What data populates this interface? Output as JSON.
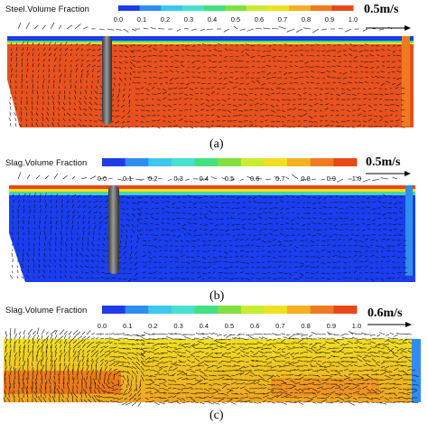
{
  "chart_data": [
    {
      "type": "heatmap",
      "caption": "(a)",
      "colorbar_label": "Steel.Volume Fraction",
      "tick_labels": [
        "0.0",
        "0.1",
        "0.2",
        "0.3",
        "0.4",
        "0.5",
        "0.6",
        "0.7",
        "0.8",
        "0.9",
        "1.0"
      ],
      "scale_vector_label": "0.5m/s",
      "dominant_value": 1.0
    },
    {
      "type": "heatmap",
      "caption": "(b)",
      "colorbar_label": "Slag.Volume Fraction",
      "tick_labels": [
        "0.0",
        "0.1",
        "0.2",
        "0.3",
        "0.4",
        "0.5",
        "0.6",
        "0.7",
        "0.8",
        "0.9",
        "1.0"
      ],
      "scale_vector_label": "0.5m/s",
      "dominant_value": 0.0
    },
    {
      "type": "heatmap",
      "caption": "(c)",
      "colorbar_label": "Slag.Volume Fraction",
      "tick_labels": [
        "0.0",
        "0.1",
        "0.2",
        "0.3",
        "0.4",
        "0.5",
        "0.6",
        "0.7",
        "0.8",
        "0.9",
        "1.0"
      ],
      "scale_vector_label": "0.6m/s",
      "dominant_value": 0.8
    }
  ],
  "colors": {
    "colormap": [
      "#1e3ce8",
      "#2e8ef0",
      "#3ec8f0",
      "#48e0d0",
      "#44e080",
      "#80e040",
      "#c8ec30",
      "#f0e020",
      "#f4b020",
      "#f07a20",
      "#e84818"
    ],
    "steel_fill": "#e8511e",
    "slag_fill": "#1a3ef0",
    "slag_c_fill": "#f0a420",
    "nozzle": "#6a6a6a",
    "vector": "#111111"
  }
}
